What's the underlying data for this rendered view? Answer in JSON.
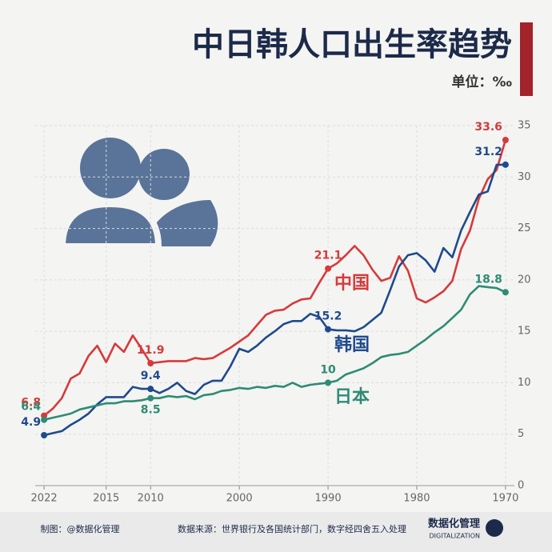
{
  "chart_data": {
    "type": "line",
    "title": "中日韩人口出生率趋势",
    "subtitle": "单位：‰",
    "x": [
      1970,
      1971,
      1972,
      1973,
      1974,
      1975,
      1976,
      1977,
      1978,
      1979,
      1980,
      1981,
      1982,
      1983,
      1984,
      1985,
      1986,
      1987,
      1988,
      1989,
      1990,
      1991,
      1992,
      1993,
      1994,
      1995,
      1996,
      1997,
      1998,
      1999,
      2000,
      2001,
      2002,
      2003,
      2004,
      2005,
      2006,
      2007,
      2008,
      2009,
      2010,
      2011,
      2012,
      2013,
      2014,
      2015,
      2016,
      2017,
      2018,
      2019,
      2020,
      2021,
      2022
    ],
    "series": [
      {
        "name": "中国",
        "color": "#d63a3a",
        "values": [
          33.6,
          30.7,
          29.8,
          27.9,
          24.8,
          23.0,
          19.9,
          18.9,
          18.3,
          17.8,
          18.2,
          20.9,
          22.3,
          20.2,
          19.9,
          21.0,
          22.4,
          23.3,
          22.4,
          21.6,
          21.1,
          19.7,
          18.2,
          18.1,
          17.7,
          17.1,
          17.0,
          16.6,
          15.6,
          14.6,
          14.0,
          13.4,
          12.9,
          12.4,
          12.3,
          12.4,
          12.1,
          12.1,
          12.1,
          12.0,
          11.9,
          13.3,
          14.6,
          13.0,
          13.8,
          12.0,
          13.6,
          12.6,
          10.9,
          10.4,
          8.5,
          7.5,
          6.8
        ]
      },
      {
        "name": "韩国",
        "color": "#1f4a8c",
        "values": [
          31.2,
          31.2,
          28.6,
          28.3,
          26.6,
          24.8,
          22.2,
          23.1,
          20.8,
          21.9,
          22.6,
          22.4,
          21.3,
          19.0,
          16.8,
          16.1,
          15.4,
          15.0,
          15.1,
          15.1,
          15.2,
          16.4,
          16.7,
          16.0,
          16.0,
          15.7,
          15.0,
          14.4,
          13.6,
          13.0,
          13.3,
          11.6,
          10.2,
          10.2,
          9.8,
          8.9,
          9.2,
          10.0,
          9.4,
          9.0,
          9.4,
          9.4,
          9.6,
          8.6,
          8.6,
          8.6,
          7.9,
          7.0,
          6.4,
          5.9,
          5.3,
          5.1,
          4.9
        ]
      },
      {
        "name": "日本",
        "color": "#2e8b74",
        "values": [
          18.8,
          19.2,
          19.3,
          19.4,
          18.6,
          17.1,
          16.3,
          15.5,
          14.9,
          14.2,
          13.6,
          13.0,
          12.8,
          12.7,
          12.5,
          11.9,
          11.4,
          11.1,
          10.8,
          10.2,
          10.0,
          9.9,
          9.8,
          9.6,
          10.0,
          9.6,
          9.7,
          9.5,
          9.6,
          9.4,
          9.5,
          9.3,
          9.2,
          8.9,
          8.8,
          8.4,
          8.7,
          8.6,
          8.7,
          8.5,
          8.5,
          8.3,
          8.2,
          8.2,
          8.0,
          8.0,
          7.8,
          7.6,
          7.4,
          7.0,
          6.8,
          6.6,
          6.4
        ]
      }
    ],
    "xlim": [
      1969,
      2023
    ],
    "xticks": [
      1970,
      1980,
      1990,
      2000,
      2010,
      2015,
      2022
    ],
    "ylim": [
      0,
      35
    ],
    "yticks": [
      0,
      5,
      10,
      15,
      20,
      25,
      30,
      35
    ],
    "grid": true,
    "x_reversed": true
  },
  "footer": {
    "brand": "数据化管理",
    "brand_en": "DIGITALIZATION",
    "source": "数据来源：世界银行及各国统计部门，数字经四舍五入处理",
    "maker": "制图：@数据化管理"
  }
}
